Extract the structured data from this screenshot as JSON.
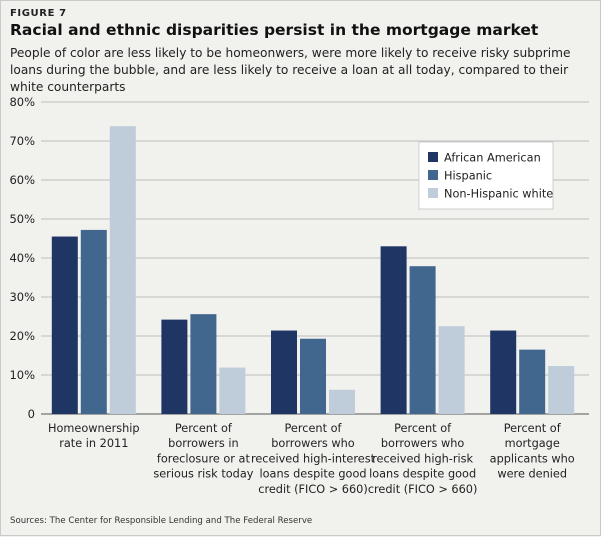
{
  "figure_label": "FIGURE 7",
  "title": "Racial and ethnic disparities persist in the mortgage market",
  "subtitle": "People of color are less likely to be homeonwers, were more likely to receive risky subprime loans during the bubble, and are less likely to receive a loan at all today, compared to their white counterparts",
  "source": "Sources: The Center for Responsible Lending and The Federal Reserve",
  "chart_data": {
    "type": "bar",
    "title": "",
    "xlabel": "",
    "ylabel": "",
    "ylim": [
      0,
      80
    ],
    "yticks": [
      "0",
      "10%",
      "20%",
      "30%",
      "40%",
      "50%",
      "60%",
      "70%",
      "80%"
    ],
    "ytick_values": [
      0,
      10,
      20,
      30,
      40,
      50,
      60,
      70,
      80
    ],
    "grid": true,
    "legend_position": "top-right",
    "categories": [
      [
        "Homeownership",
        "rate in 2011"
      ],
      [
        "Percent of",
        "borrowers in",
        "foreclosure or at",
        "serious risk today"
      ],
      [
        "Percent of",
        "borrowers who",
        "received high-interest",
        "loans despite good",
        "credit (FICO > 660)"
      ],
      [
        "Percent of",
        "borrowers who",
        "received high-risk",
        "loans despite good",
        "credit (FICO > 660)"
      ],
      [
        "Percent of",
        "mortgage",
        "applicants who",
        "were denied"
      ]
    ],
    "series": [
      {
        "name": "African American",
        "color": "#1f3564",
        "values": [
          45.5,
          24.2,
          21.4,
          43.0,
          21.4
        ]
      },
      {
        "name": "Hispanic",
        "color": "#42678f",
        "values": [
          47.2,
          25.6,
          19.3,
          37.9,
          16.5
        ]
      },
      {
        "name": "Non-Hispanic white",
        "color": "#bfccd9",
        "values": [
          73.8,
          11.9,
          6.2,
          22.5,
          12.3
        ]
      }
    ]
  }
}
